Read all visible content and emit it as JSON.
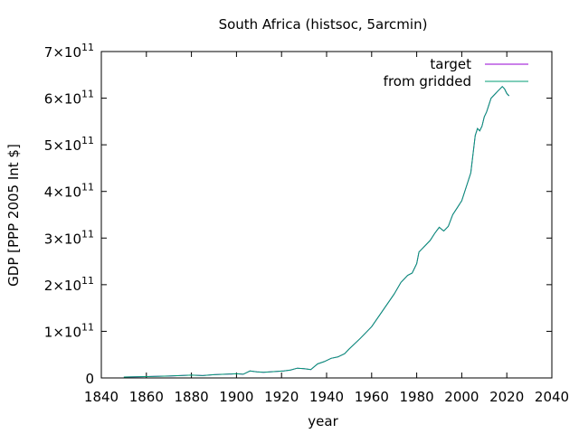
{
  "chart_data": {
    "type": "line",
    "title": "South Africa (histsoc, 5arcmin)",
    "xlabel": "year",
    "ylabel": "GDP [PPP 2005 Int $]",
    "xlim": [
      1840,
      2040
    ],
    "ylim": [
      0,
      700000000000
    ],
    "x_ticks": [
      1840,
      1860,
      1880,
      1900,
      1920,
      1940,
      1960,
      1980,
      2000,
      2020,
      2040
    ],
    "y_ticks": [
      {
        "value": 0,
        "mantissa": "0",
        "exponent": ""
      },
      {
        "value": 100000000000,
        "mantissa": "1×10",
        "exponent": "11"
      },
      {
        "value": 200000000000,
        "mantissa": "2×10",
        "exponent": "11"
      },
      {
        "value": 300000000000,
        "mantissa": "3×10",
        "exponent": "11"
      },
      {
        "value": 400000000000,
        "mantissa": "4×10",
        "exponent": "11"
      },
      {
        "value": 500000000000,
        "mantissa": "5×10",
        "exponent": "11"
      },
      {
        "value": 600000000000,
        "mantissa": "6×10",
        "exponent": "11"
      },
      {
        "value": 700000000000,
        "mantissa": "7×10",
        "exponent": "11"
      }
    ],
    "grid": false,
    "legend_position": "top-right",
    "x": [
      1850,
      1860,
      1870,
      1875,
      1880,
      1885,
      1890,
      1895,
      1900,
      1903,
      1906,
      1909,
      1912,
      1915,
      1918,
      1921,
      1924,
      1927,
      1930,
      1933,
      1936,
      1939,
      1942,
      1945,
      1948,
      1950,
      1955,
      1960,
      1965,
      1970,
      1973,
      1976,
      1978,
      1980,
      1981,
      1982,
      1984,
      1986,
      1988,
      1990,
      1992,
      1994,
      1996,
      1998,
      2000,
      2002,
      2004,
      2006,
      2007,
      2008,
      2009,
      2010,
      2011,
      2012,
      2013,
      2014,
      2015,
      2016,
      2017,
      2018,
      2019,
      2020,
      2021
    ],
    "series": [
      {
        "name": "target",
        "color": "#9400d3",
        "values": [
          2,
          3,
          4,
          5,
          6,
          5,
          7,
          8,
          9,
          8,
          15,
          13,
          12,
          13,
          14,
          15,
          17,
          21,
          20,
          18,
          30,
          35,
          42,
          45,
          52,
          62,
          85,
          110,
          145,
          180,
          205,
          220,
          225,
          245,
          270,
          275,
          285,
          295,
          310,
          323,
          315,
          325,
          350,
          365,
          380,
          410,
          440,
          520,
          535,
          530,
          540,
          560,
          570,
          585,
          600,
          605,
          610,
          615,
          620,
          625,
          620,
          610,
          605
        ]
      },
      {
        "name": "from gridded",
        "color": "#009e73",
        "values": [
          2,
          3,
          4,
          5,
          6,
          5,
          7,
          8,
          9,
          8,
          15,
          13,
          12,
          13,
          14,
          15,
          17,
          21,
          20,
          18,
          30,
          35,
          42,
          45,
          52,
          62,
          85,
          110,
          145,
          180,
          205,
          220,
          225,
          245,
          270,
          275,
          285,
          295,
          310,
          323,
          315,
          325,
          350,
          365,
          380,
          410,
          440,
          520,
          535,
          530,
          540,
          560,
          570,
          585,
          600,
          605,
          610,
          615,
          620,
          625,
          620,
          610,
          605
        ]
      }
    ],
    "value_unit_note": "values in units of 1e9"
  }
}
